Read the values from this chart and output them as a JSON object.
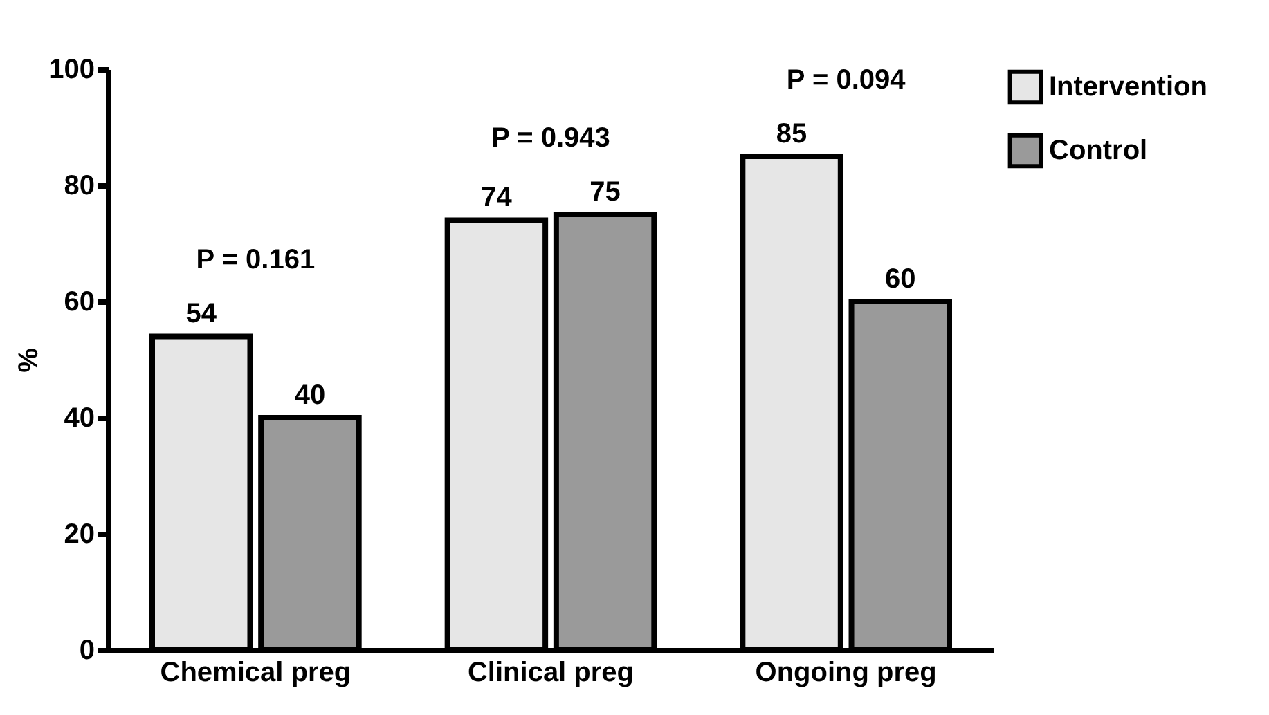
{
  "chart_data": {
    "type": "bar",
    "ylabel": "%",
    "categories": [
      "Chemical preg",
      "Clinical preg",
      "Ongoing preg"
    ],
    "series": [
      {
        "name": "Intervention",
        "color": "#e6e6e6",
        "values": [
          54,
          74,
          85
        ]
      },
      {
        "name": "Control",
        "color": "#9a9a9a",
        "values": [
          40,
          75,
          60
        ]
      }
    ],
    "ylim": [
      0,
      100
    ],
    "yticks": [
      0,
      20,
      40,
      60,
      80,
      100
    ],
    "data_labels": true,
    "grid": false,
    "legend": "top right",
    "annotations": [
      "P = 0.161",
      "P = 0.943",
      "P = 0.094"
    ]
  }
}
